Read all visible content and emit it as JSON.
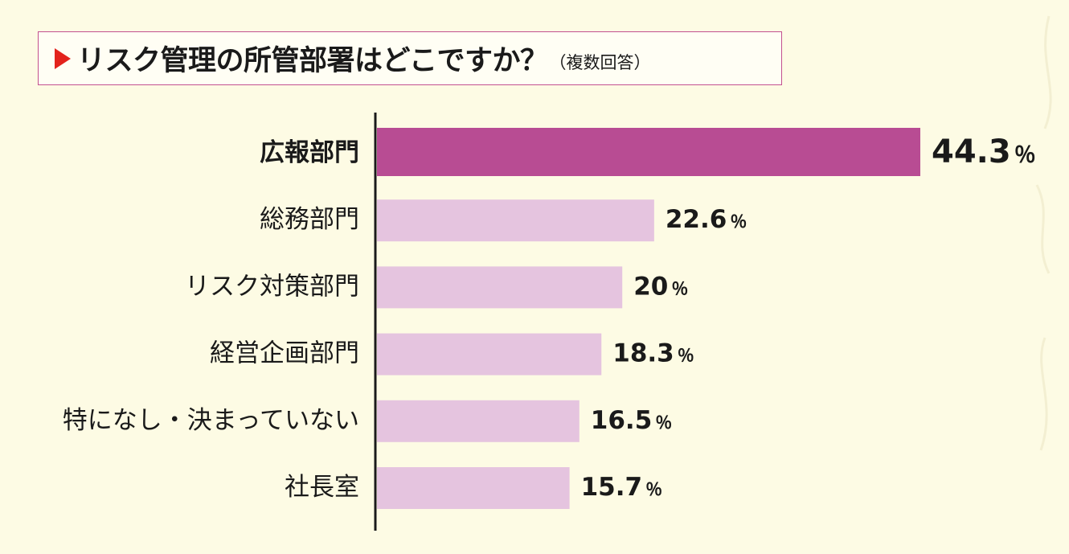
{
  "title": {
    "main": "リスク管理の所管部署はどこですか？",
    "sub": "（複数回答）"
  },
  "colors": {
    "background": "#fdfbe4",
    "highlight_bar": "#b84c93",
    "bar": "#e5c4df",
    "title_border": "#c3508f",
    "title_marker": "#e3231c",
    "axis": "#1a1a1a"
  },
  "chart_data": {
    "type": "bar",
    "orientation": "horizontal",
    "title": "リスク管理の所管部署はどこですか？（複数回答）",
    "categories": [
      "広報部門",
      "総務部門",
      "リスク対策部門",
      "経営企画部門",
      "特になし・決まっていない",
      "社長室"
    ],
    "values": [
      44.3,
      22.6,
      20,
      18.3,
      16.5,
      15.7
    ],
    "value_labels": [
      "44.3",
      "22.6",
      "20",
      "18.3",
      "16.5",
      "15.7"
    ],
    "unit": "％",
    "highlight_index": 0,
    "xlim": [
      0,
      100
    ],
    "grid": false,
    "legend": "none"
  }
}
